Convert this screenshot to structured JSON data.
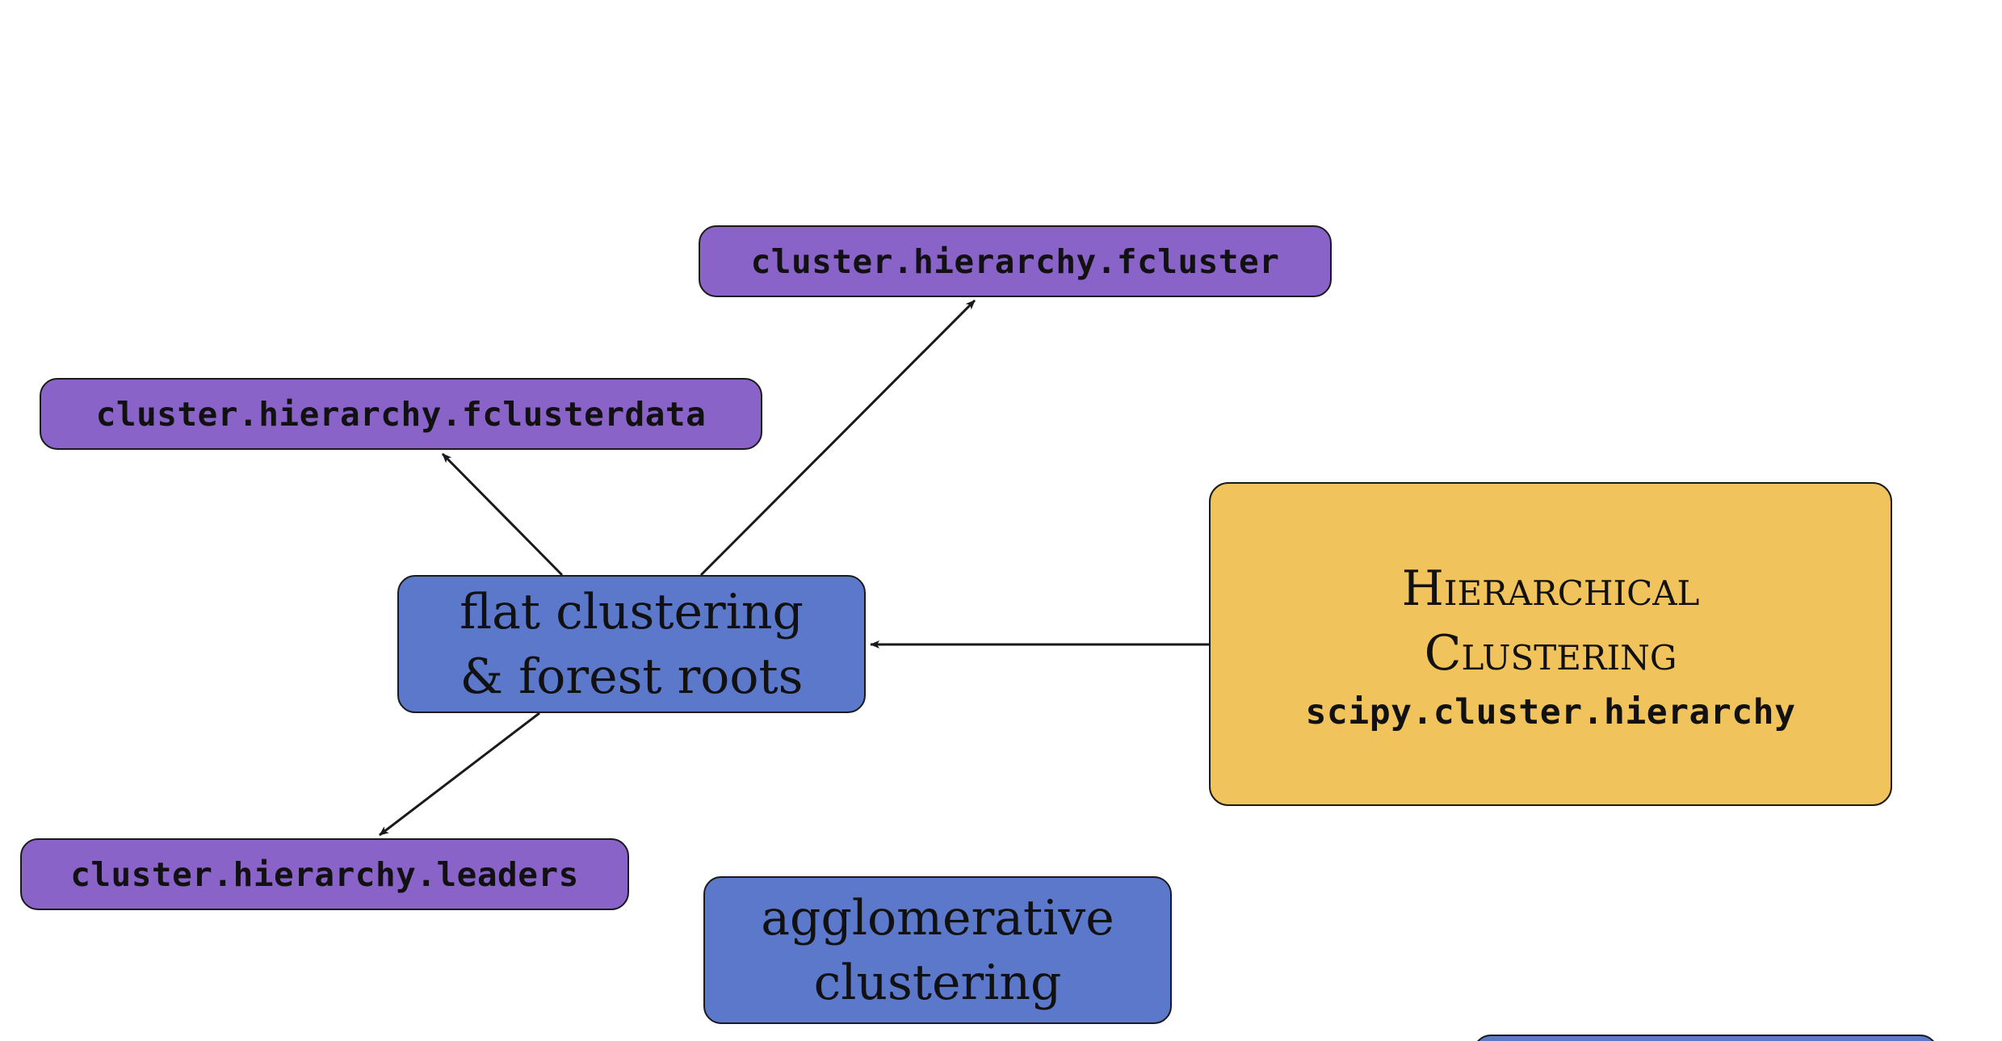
{
  "root": {
    "title_line1": "Hierarchical",
    "title_line2": "Clustering",
    "module": "scipy.cluster.hierarchy"
  },
  "flat": {
    "line1": "flat clustering",
    "line2": "& forest roots"
  },
  "agglomerative": {
    "line1": "agglomerative",
    "line2": "clustering"
  },
  "functions": {
    "fcluster": "cluster.hierarchy.fcluster",
    "fclusterdata": "cluster.hierarchy.fclusterdata",
    "leaders": "cluster.hierarchy.leaders"
  },
  "colors": {
    "function_node": "#8a63c8",
    "category_node": "#5b78cb",
    "root_node": "#f0c35c",
    "edge": "#1a1a1a"
  }
}
